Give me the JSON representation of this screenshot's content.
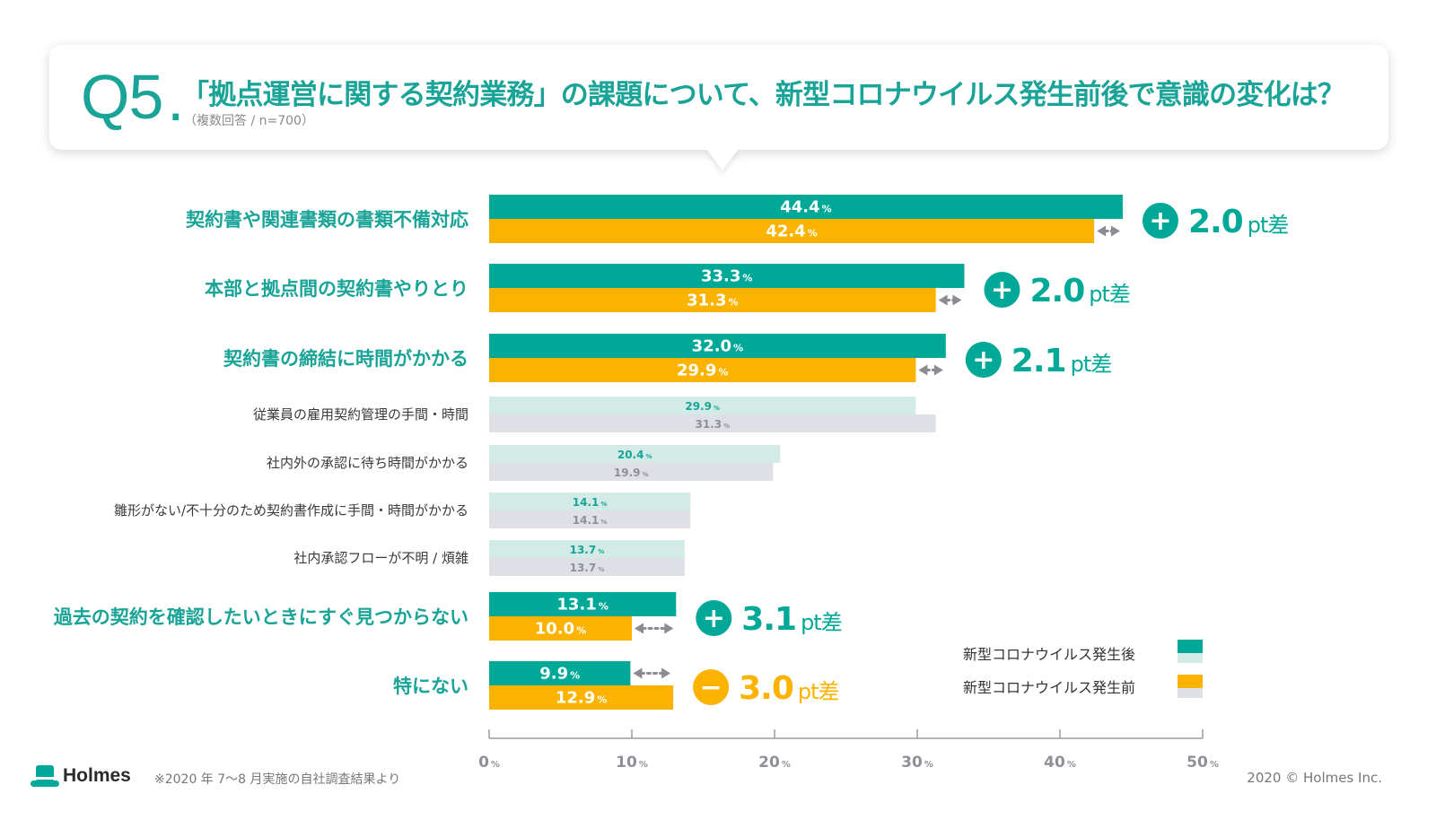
{
  "header": {
    "question_number": "Q5",
    "question_dot": ".",
    "title": "「拠点運営に関する契約業務」の課題について、新型コロナウイルス発生前後で意識の変化は？",
    "subtitle": "（複数回答 / n=700）"
  },
  "colors": {
    "teal": "#00a898",
    "orange": "#fbb300",
    "light_teal": "#d2ebe7",
    "light_gray": "#dfe0e5",
    "teal_text": "#1aa397",
    "gray_text": "#8f9097",
    "dark_text": "#3a3a3a"
  },
  "chart_data": {
    "type": "bar",
    "orientation": "horizontal",
    "xlabel": "",
    "ylabel": "",
    "xlim": [
      0,
      50
    ],
    "x_ticks": [
      0,
      10,
      20,
      30,
      40,
      50
    ],
    "tick_suffix": "%",
    "series": [
      {
        "name": "新型コロナウイルス発生後",
        "values": [
          44.4,
          33.3,
          32.0,
          29.9,
          20.4,
          14.1,
          13.7,
          13.1,
          9.9
        ]
      },
      {
        "name": "新型コロナウイルス発生前",
        "values": [
          42.4,
          31.3,
          29.9,
          31.3,
          19.9,
          14.1,
          13.7,
          10.0,
          12.9
        ]
      }
    ],
    "categories": [
      {
        "label": "契約書や関連書類の書類不備対応",
        "after": "44.4",
        "before": "42.4",
        "highlight": true,
        "diff_sign": "+",
        "diff_value": "2.0",
        "diff_color": "teal"
      },
      {
        "label": "本部と拠点間の契約書やりとり",
        "after": "33.3",
        "before": "31.3",
        "highlight": true,
        "diff_sign": "+",
        "diff_value": "2.0",
        "diff_color": "teal"
      },
      {
        "label": "契約書の締結に時間がかかる",
        "after": "32.0",
        "before": "29.9",
        "highlight": true,
        "diff_sign": "+",
        "diff_value": "2.1",
        "diff_color": "teal"
      },
      {
        "label": "従業員の雇用契約管理の手間・時間",
        "after": "29.9",
        "before": "31.3",
        "highlight": false
      },
      {
        "label": "社内外の承認に待ち時間がかかる",
        "after": "20.4",
        "before": "19.9",
        "highlight": false
      },
      {
        "label": "雛形がない/不十分のため契約書作成に手間・時間がかかる",
        "after": "14.1",
        "before": "14.1",
        "highlight": false
      },
      {
        "label": "社内承認フローが不明 / 煩雑",
        "after": "13.7",
        "before": "13.7",
        "highlight": false
      },
      {
        "label": "過去の契約を確認したいときにすぐ見つからない",
        "after": "13.1",
        "before": "10.0",
        "highlight": true,
        "diff_sign": "+",
        "diff_value": "3.1",
        "diff_color": "teal"
      },
      {
        "label": "特にない",
        "after": "9.9",
        "before": "12.9",
        "highlight": true,
        "diff_sign": "−",
        "diff_value": "3.0",
        "diff_color": "orange"
      }
    ],
    "diff_unit": "pt差",
    "legend_position": "bottom-right"
  },
  "legend": {
    "after_label": "新型コロナウイルス発生後",
    "before_label": "新型コロナウイルス発生前"
  },
  "footer": {
    "brand": "Holmes",
    "note": "※2020 年 7〜8 月実施の自社調査結果より",
    "copyright": "2020 © Holmes Inc."
  }
}
